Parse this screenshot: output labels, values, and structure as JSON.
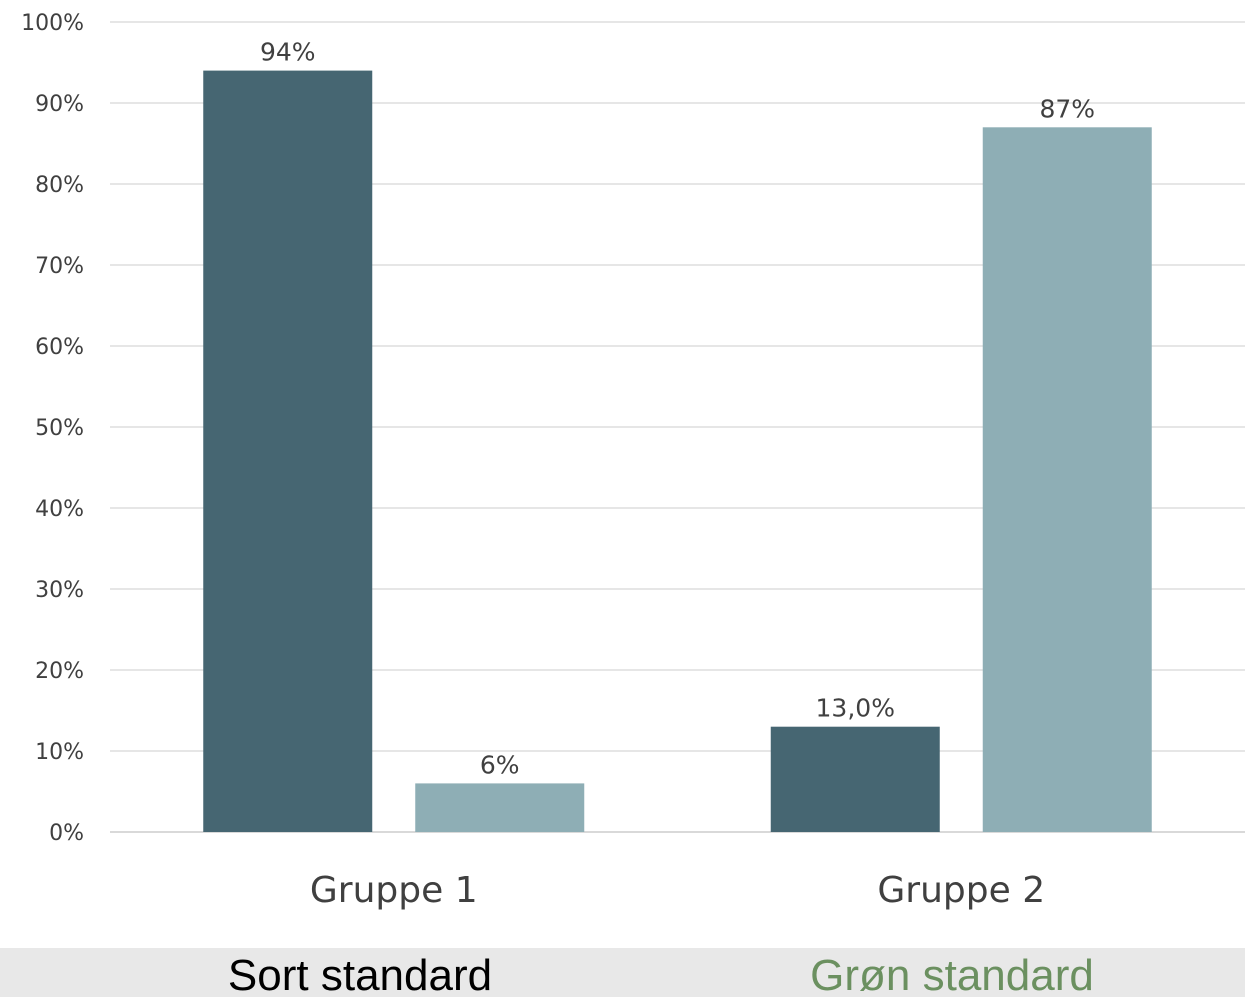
{
  "chart_data": {
    "type": "bar",
    "categories": [
      "Gruppe 1",
      "Gruppe 2"
    ],
    "series": [
      {
        "values": [
          94,
          13
        ],
        "value_labels": [
          "94%",
          "13,0%"
        ],
        "color": "#466672"
      },
      {
        "values": [
          6,
          87
        ],
        "value_labels": [
          "6%",
          "87%"
        ],
        "color": "#8eaeb5"
      }
    ],
    "y_ticks": [
      "0%",
      "10%",
      "20%",
      "30%",
      "40%",
      "50%",
      "60%",
      "70%",
      "80%",
      "90%",
      "100%"
    ],
    "ylim": [
      0,
      100
    ],
    "grid": true,
    "legend_placement": "bottom"
  },
  "legend": [
    {
      "label": "Sort standard",
      "color": "#000000"
    },
    {
      "label": "Grøn standard",
      "color": "#6b9060"
    }
  ]
}
